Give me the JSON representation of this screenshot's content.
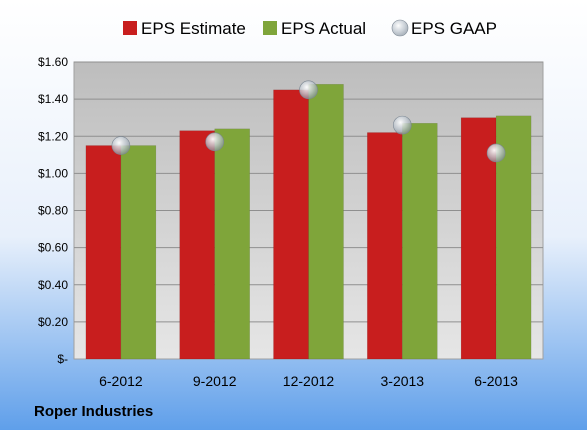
{
  "chart_data": {
    "type": "bar",
    "company": "Roper Industries",
    "categories": [
      "6-2012",
      "9-2012",
      "12-2012",
      "3-2013",
      "6-2013"
    ],
    "series": [
      {
        "name": "EPS Estimate",
        "kind": "bar",
        "color": "#c81e1e",
        "values": [
          1.15,
          1.23,
          1.45,
          1.22,
          1.3
        ]
      },
      {
        "name": "EPS Actual",
        "kind": "bar",
        "color": "#7fa53a",
        "values": [
          1.15,
          1.24,
          1.48,
          1.27,
          1.31
        ]
      },
      {
        "name": "EPS GAAP",
        "kind": "marker",
        "color": "#b8c2cc",
        "values": [
          1.15,
          1.17,
          1.45,
          1.26,
          1.11
        ]
      }
    ],
    "yticks": [
      "$-",
      "$0.20",
      "$0.40",
      "$0.60",
      "$0.80",
      "$1.00",
      "$1.20",
      "$1.40",
      "$1.60"
    ],
    "ylim": [
      0,
      1.6
    ],
    "grid": true,
    "legend_position": "top"
  },
  "colors": {
    "background_top": "#ffffff",
    "background_bottom": "#5f9fea",
    "plot_fill": "#c8c8c8"
  }
}
